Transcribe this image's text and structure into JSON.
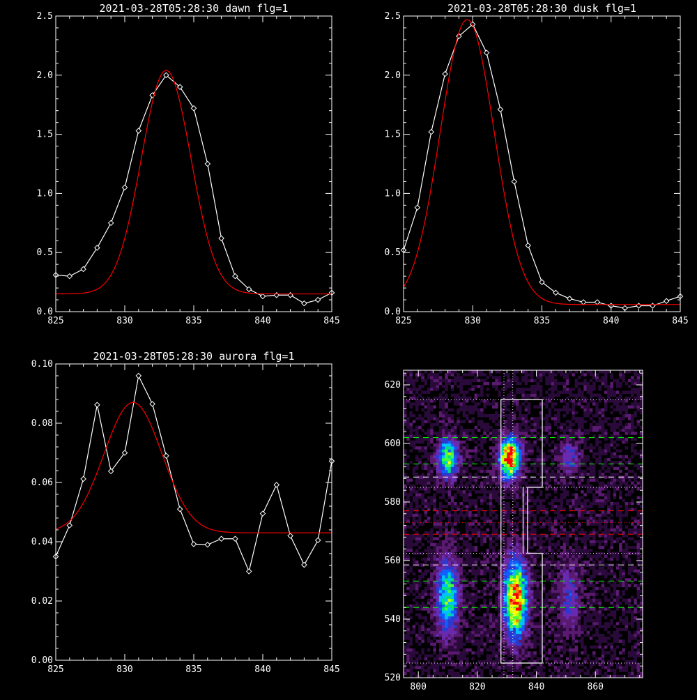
{
  "chart_data": [
    {
      "type": "line",
      "title": "2021-03-28T05:28:30 dawn flg=1",
      "xlim": [
        825,
        845
      ],
      "ylim": [
        0,
        2.5
      ],
      "xticks": [
        "825",
        "830",
        "835",
        "840",
        "845"
      ],
      "yticks": [
        "0.0",
        "0.5",
        "1.0",
        "1.5",
        "2.0",
        "2.5"
      ],
      "series": [
        {
          "color": "#ffffff",
          "marker": "diamond",
          "x": [
            825,
            826,
            827,
            828,
            829,
            830,
            831,
            832,
            833,
            834,
            835,
            836,
            837,
            838,
            839,
            840,
            841,
            842,
            843,
            844,
            845
          ],
          "y": [
            0.31,
            0.3,
            0.36,
            0.54,
            0.75,
            1.05,
            1.53,
            1.83,
            2.0,
            1.9,
            1.72,
            1.25,
            0.62,
            0.3,
            0.19,
            0.13,
            0.14,
            0.14,
            0.07,
            0.1,
            0.16
          ]
        },
        {
          "color": "#ff0000",
          "marker": "none",
          "fit": {
            "amp": 1.89,
            "center": 833.0,
            "sigma": 1.8,
            "base": 0.15
          }
        }
      ]
    },
    {
      "type": "line",
      "title": "2021-03-28T05:28:30 dusk flg=1",
      "xlim": [
        825,
        845
      ],
      "ylim": [
        0,
        2.5
      ],
      "xticks": [
        "825",
        "830",
        "835",
        "840",
        "845"
      ],
      "yticks": [
        "0.0",
        "0.5",
        "1.0",
        "1.5",
        "2.0",
        "2.5"
      ],
      "series": [
        {
          "color": "#ffffff",
          "marker": "diamond",
          "x": [
            825,
            826,
            827,
            828,
            829,
            830,
            831,
            832,
            833,
            834,
            835,
            836,
            837,
            838,
            839,
            840,
            841,
            842,
            843,
            844,
            845
          ],
          "y": [
            0.52,
            0.88,
            1.52,
            2.01,
            2.33,
            2.43,
            2.19,
            1.71,
            1.1,
            0.56,
            0.25,
            0.16,
            0.11,
            0.08,
            0.08,
            0.05,
            0.03,
            0.05,
            0.05,
            0.09,
            0.13
          ]
        },
        {
          "color": "#ff0000",
          "marker": "none",
          "fit": {
            "amp": 2.41,
            "center": 829.6,
            "sigma": 1.95,
            "base": 0.06
          }
        }
      ]
    },
    {
      "type": "line",
      "title": "2021-03-28T05:28:30 aurora flg=1",
      "xlim": [
        825,
        845
      ],
      "ylim": [
        0,
        0.1
      ],
      "xticks": [
        "825",
        "830",
        "835",
        "840",
        "845"
      ],
      "yticks": [
        "0.00",
        "0.02",
        "0.04",
        "0.06",
        "0.08",
        "0.10"
      ],
      "series": [
        {
          "color": "#ffffff",
          "marker": "diamond",
          "x": [
            825,
            826,
            827,
            828,
            829,
            830,
            831,
            832,
            833,
            834,
            835,
            836,
            837,
            838,
            839,
            840,
            841,
            842,
            843,
            844,
            845
          ],
          "y": [
            0.035,
            0.0455,
            0.0612,
            0.0862,
            0.0638,
            0.07,
            0.096,
            0.0865,
            0.069,
            0.051,
            0.0392,
            0.039,
            0.041,
            0.041,
            0.03,
            0.0495,
            0.0592,
            0.042,
            0.0322,
            0.0405,
            0.0672
          ]
        },
        {
          "color": "#ff0000",
          "marker": "none",
          "fit": {
            "amp": 0.044,
            "center": 830.6,
            "sigma": 2.1,
            "base": 0.043
          }
        }
      ]
    },
    {
      "type": "heatmap",
      "title": "",
      "xlim": [
        795,
        876
      ],
      "ylim": [
        520,
        625
      ],
      "xticks": [
        "800",
        "820",
        "840",
        "860"
      ],
      "yticks": [
        "520",
        "540",
        "560",
        "580",
        "600",
        "620"
      ],
      "colormap": [
        "#000000",
        "#2a0a3a",
        "#5a1a70",
        "#6a2ab0",
        "#2a3ad0",
        "#1060ff",
        "#00c0ff",
        "#00e080",
        "#40ff40",
        "#c0ff00",
        "#ffff00",
        "#ff8000",
        "#ff0000"
      ],
      "blobs": [
        {
          "cx": 810,
          "cy": 595,
          "sx": 2.3,
          "sy": 4.5,
          "amp": 0.62
        },
        {
          "cx": 810,
          "cy": 548,
          "sx": 2.5,
          "sy": 8.5,
          "amp": 0.55
        },
        {
          "cx": 831,
          "cy": 595,
          "sx": 2.3,
          "sy": 4.5,
          "amp": 1.0
        },
        {
          "cx": 833,
          "cy": 547,
          "sx": 2.6,
          "sy": 8.5,
          "amp": 0.95
        },
        {
          "cx": 851,
          "cy": 595,
          "sx": 2.2,
          "sy": 4,
          "amp": 0.25
        },
        {
          "cx": 851,
          "cy": 548,
          "sx": 2.6,
          "sy": 8,
          "amp": 0.22
        }
      ],
      "hlines": [
        {
          "y": 615,
          "color": "#ffffff",
          "style": "dotted"
        },
        {
          "y": 602,
          "color": "#00ff00",
          "style": "dashed"
        },
        {
          "y": 593,
          "color": "#00ff00",
          "style": "dashed"
        },
        {
          "y": 588.5,
          "color": "#ffffff",
          "style": "dashed"
        },
        {
          "y": 585,
          "color": "#ffffff",
          "style": "dotted"
        },
        {
          "y": 577,
          "color": "#ff0000",
          "style": "dashed"
        },
        {
          "y": 573,
          "color": "#ff0000",
          "style": "dotted"
        },
        {
          "y": 569,
          "color": "#ff0000",
          "style": "dashed"
        },
        {
          "y": 562.5,
          "color": "#ffffff",
          "style": "dotted"
        },
        {
          "y": 558.5,
          "color": "#ffffff",
          "style": "dashed"
        },
        {
          "y": 553,
          "color": "#00ff00",
          "style": "dashed"
        },
        {
          "y": 544,
          "color": "#00ff00",
          "style": "dashed"
        },
        {
          "y": 525,
          "color": "#ffffff",
          "style": "dotted"
        }
      ],
      "vlines": [
        {
          "x": 829,
          "color": "#ffffff",
          "style": "dotted"
        },
        {
          "x": 832,
          "color": "#ffffff",
          "style": "dotted"
        }
      ],
      "box_outline": [
        [
          828,
          615
        ],
        [
          842,
          615
        ],
        [
          842,
          585
        ],
        [
          837,
          585
        ],
        [
          837,
          562.5
        ],
        [
          842,
          562.5
        ],
        [
          842,
          525
        ],
        [
          828,
          525
        ]
      ],
      "box_divider": [
        [
          835.5,
          585
        ],
        [
          835.5,
          562.5
        ]
      ]
    }
  ]
}
